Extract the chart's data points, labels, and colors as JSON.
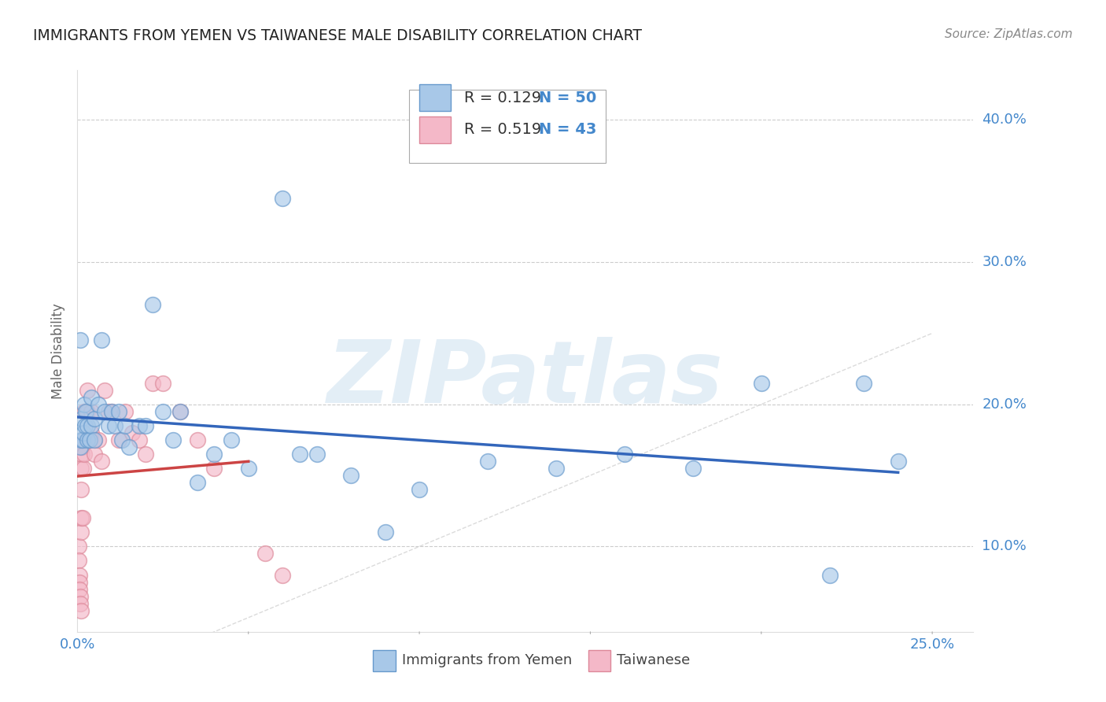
{
  "title": "IMMIGRANTS FROM YEMEN VS TAIWANESE MALE DISABILITY CORRELATION CHART",
  "source": "Source: ZipAtlas.com",
  "ylabel": "Male Disability",
  "xlim": [
    0.0,
    0.262
  ],
  "ylim": [
    0.04,
    0.435
  ],
  "x_ticks": [
    0.0,
    0.05,
    0.1,
    0.15,
    0.2,
    0.25
  ],
  "x_tick_labels": [
    "0.0%",
    "",
    "",
    "",
    "",
    "25.0%"
  ],
  "y_ticks": [
    0.1,
    0.2,
    0.3,
    0.4
  ],
  "y_tick_labels": [
    "10.0%",
    "20.0%",
    "30.0%",
    "40.0%"
  ],
  "legend_r1": "R = 0.129",
  "legend_n1": "N = 50",
  "legend_r2": "R = 0.519",
  "legend_n2": "N = 43",
  "legend_label1": "Immigrants from Yemen",
  "legend_label2": "Taiwanese",
  "blue_color": "#a8c8e8",
  "pink_color": "#f4b8c8",
  "blue_edge_color": "#6699cc",
  "pink_edge_color": "#dd8899",
  "blue_line_color": "#3366bb",
  "pink_line_color": "#cc4444",
  "text_blue": "#4488cc",
  "text_dark": "#333333",
  "watermark": "ZIPatlas",
  "blue_x": [
    0.0008,
    0.0009,
    0.001,
    0.0012,
    0.0015,
    0.0018,
    0.002,
    0.0022,
    0.0025,
    0.003,
    0.003,
    0.0035,
    0.004,
    0.004,
    0.005,
    0.005,
    0.006,
    0.007,
    0.008,
    0.009,
    0.01,
    0.011,
    0.012,
    0.013,
    0.014,
    0.015,
    0.018,
    0.02,
    0.022,
    0.025,
    0.028,
    0.03,
    0.035,
    0.04,
    0.045,
    0.05,
    0.06,
    0.065,
    0.07,
    0.08,
    0.09,
    0.1,
    0.12,
    0.14,
    0.16,
    0.18,
    0.2,
    0.22,
    0.23,
    0.24
  ],
  "blue_y": [
    0.245,
    0.17,
    0.175,
    0.19,
    0.175,
    0.18,
    0.2,
    0.185,
    0.195,
    0.185,
    0.175,
    0.175,
    0.205,
    0.185,
    0.19,
    0.175,
    0.2,
    0.245,
    0.195,
    0.185,
    0.195,
    0.185,
    0.195,
    0.175,
    0.185,
    0.17,
    0.185,
    0.185,
    0.27,
    0.195,
    0.175,
    0.195,
    0.145,
    0.165,
    0.175,
    0.155,
    0.345,
    0.165,
    0.165,
    0.15,
    0.11,
    0.14,
    0.16,
    0.155,
    0.165,
    0.155,
    0.215,
    0.08,
    0.215,
    0.16
  ],
  "pink_x": [
    0.0003,
    0.0004,
    0.0005,
    0.0006,
    0.0007,
    0.0008,
    0.0009,
    0.001,
    0.001,
    0.001,
    0.001,
    0.001,
    0.0012,
    0.0013,
    0.0015,
    0.0015,
    0.0018,
    0.002,
    0.002,
    0.002,
    0.003,
    0.003,
    0.004,
    0.004,
    0.005,
    0.005,
    0.006,
    0.007,
    0.008,
    0.009,
    0.01,
    0.012,
    0.014,
    0.016,
    0.018,
    0.02,
    0.022,
    0.025,
    0.03,
    0.035,
    0.04,
    0.055,
    0.06
  ],
  "pink_y": [
    0.1,
    0.09,
    0.08,
    0.075,
    0.07,
    0.065,
    0.06,
    0.055,
    0.11,
    0.12,
    0.14,
    0.155,
    0.165,
    0.17,
    0.12,
    0.175,
    0.155,
    0.195,
    0.175,
    0.165,
    0.21,
    0.195,
    0.195,
    0.18,
    0.175,
    0.165,
    0.175,
    0.16,
    0.21,
    0.195,
    0.195,
    0.175,
    0.195,
    0.18,
    0.175,
    0.165,
    0.215,
    0.215,
    0.195,
    0.175,
    0.155,
    0.095,
    0.08
  ]
}
